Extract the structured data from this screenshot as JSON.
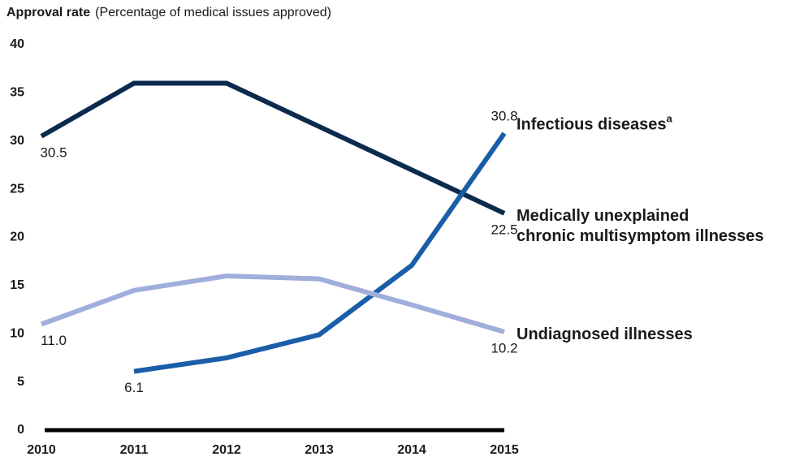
{
  "chart_data": {
    "type": "line",
    "title": "Approval rate",
    "subtitle": "(Percentage of medical issues approved)",
    "categories": [
      "2010",
      "2011",
      "2012",
      "2013",
      "2014",
      "2015"
    ],
    "ylim": [
      0,
      40
    ],
    "yticks": [
      0,
      5,
      10,
      15,
      20,
      25,
      30,
      35,
      40
    ],
    "grid": false,
    "series": [
      {
        "name": [
          "Medically unexplained",
          "chronic multisymptom illnesses"
        ],
        "color": "#0b2a4e",
        "values": [
          30.5,
          36.0,
          36.0,
          31.5,
          27.0,
          22.5
        ],
        "value_labels": [
          "30.5",
          null,
          null,
          null,
          null,
          "22.5"
        ]
      },
      {
        "name": [
          "Infectious diseases"
        ],
        "name_superscript": "a",
        "color": "#1a5ea8",
        "values": [
          null,
          6.1,
          7.5,
          9.9,
          17.1,
          30.8
        ],
        "value_labels": [
          null,
          "6.1",
          null,
          null,
          null,
          "30.8"
        ]
      },
      {
        "name": [
          "Undiagnosed illnesses"
        ],
        "color": "#a0aedb",
        "values": [
          11.0,
          14.5,
          16.0,
          15.7,
          13.0,
          10.2
        ],
        "value_labels": [
          "11.0",
          null,
          null,
          null,
          null,
          "10.2"
        ]
      }
    ]
  }
}
